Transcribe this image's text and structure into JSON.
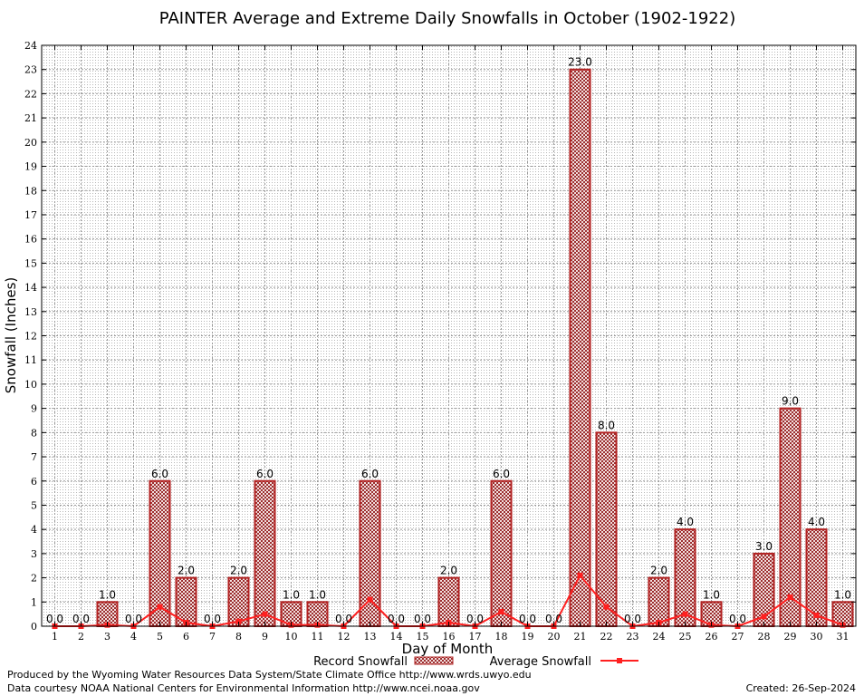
{
  "chart_data": {
    "type": "bar",
    "title": "PAINTER Average and Extreme Daily Snowfalls in October (1902-1922)",
    "xlabel": "Day of Month",
    "ylabel": "Snowfall (Inches)",
    "ylim": [
      0,
      24
    ],
    "grid": true,
    "categories": [
      "1",
      "2",
      "3",
      "4",
      "5",
      "6",
      "7",
      "8",
      "9",
      "10",
      "11",
      "12",
      "13",
      "14",
      "15",
      "16",
      "17",
      "18",
      "19",
      "20",
      "21",
      "22",
      "23",
      "24",
      "25",
      "26",
      "27",
      "28",
      "29",
      "30",
      "31"
    ],
    "series": [
      {
        "name": "Record Snowfall",
        "kind": "bar",
        "color": "#b22222",
        "values": [
          0.0,
          0.0,
          1.0,
          0.0,
          6.0,
          2.0,
          0.0,
          2.0,
          6.0,
          1.0,
          1.0,
          0.0,
          6.0,
          0.0,
          0.0,
          2.0,
          0.0,
          6.0,
          0.0,
          0.0,
          23.0,
          8.0,
          0.0,
          2.0,
          4.0,
          1.0,
          0.0,
          3.0,
          9.0,
          4.0,
          1.0
        ],
        "labels": [
          "0.0",
          "0.0",
          "1.0",
          "0.0",
          "6.0",
          "2.0",
          "0.0",
          "2.0",
          "6.0",
          "1.0",
          "1.0",
          "0.0",
          "6.0",
          "0.0",
          "0.0",
          "2.0",
          "0.0",
          "6.0",
          "0.0",
          "0.0",
          "23.0",
          "8.0",
          "0.0",
          "2.0",
          "4.0",
          "1.0",
          "0.0",
          "3.0",
          "9.0",
          "4.0",
          "1.0"
        ]
      },
      {
        "name": "Average Snowfall",
        "kind": "line",
        "color": "#ff2020",
        "values": [
          0.0,
          0.0,
          0.05,
          0.0,
          0.8,
          0.15,
          0.0,
          0.2,
          0.5,
          0.05,
          0.05,
          0.0,
          1.1,
          0.0,
          0.0,
          0.15,
          0.0,
          0.6,
          0.0,
          0.0,
          2.1,
          0.8,
          0.0,
          0.15,
          0.5,
          0.05,
          0.0,
          0.4,
          1.2,
          0.45,
          0.05
        ]
      }
    ],
    "yticks": [
      "0",
      "1",
      "2",
      "3",
      "4",
      "5",
      "6",
      "7",
      "8",
      "9",
      "10",
      "11",
      "12",
      "13",
      "14",
      "15",
      "16",
      "17",
      "18",
      "19",
      "20",
      "21",
      "22",
      "23",
      "24"
    ]
  },
  "footer": {
    "produced_by": "Produced by the Wyoming Water Resources Data System/State Climate Office http://www.wrds.uwyo.edu",
    "data_courtesy": "Data courtesy NOAA National Centers for Environmental Information http://www.ncei.noaa.gov",
    "created": "Created:  26-Sep-2024"
  }
}
